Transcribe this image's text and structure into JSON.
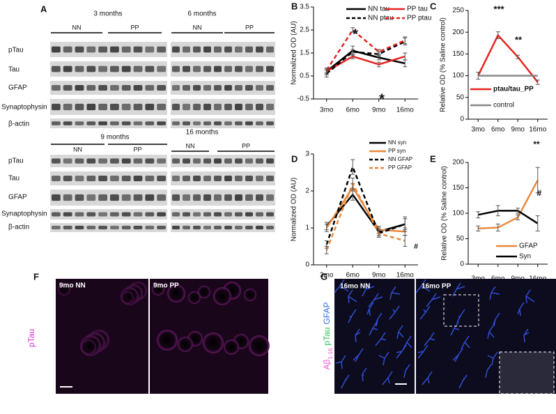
{
  "panels": {
    "A": {
      "letter": "A",
      "groups": [
        {
          "title": "3 months",
          "labels": [
            "NN",
            "PP"
          ]
        },
        {
          "title": "6 months",
          "labels": [
            "NN",
            "PP"
          ]
        },
        {
          "title": "9 months",
          "labels": [
            "NN",
            "PP"
          ]
        },
        {
          "title": "16 months",
          "labels": [
            "NN",
            "PP"
          ]
        }
      ],
      "rows_top": [
        "pTau",
        "Tau",
        "GFAP",
        "Synaptophysin",
        "β-actin"
      ],
      "rows_bottom": [
        "pTau",
        "Tau",
        "GFAP",
        "Synaptophysin",
        "β-actin"
      ]
    },
    "F": {
      "letter": "F",
      "left": "9mo NN",
      "right": "9mo PP",
      "stain": "pTau"
    },
    "G": {
      "letter": "G",
      "left": "16mo NN",
      "right": "16mo PP",
      "stain": [
        "Aβ",
        "1-16",
        "pTau",
        "GFAP"
      ]
    }
  },
  "chart_data": [
    {
      "letter": "B",
      "type": "line",
      "categories": [
        "3mo",
        "6mo",
        "9mo",
        "16mo"
      ],
      "ylabel": "Normalized OD (AU)",
      "ylim": [
        -0.5,
        3.5
      ],
      "yticks": [
        -0.5,
        0.5,
        1.5,
        2.5,
        3.5
      ],
      "series": [
        {
          "name": "NN tau",
          "color": "#000000",
          "dash": false,
          "values": [
            0.7,
            1.6,
            1.3,
            1.05
          ],
          "errors": [
            0.15,
            0.2,
            0.1,
            0.15
          ]
        },
        {
          "name": "PP tau",
          "color": "#e8231f",
          "dash": false,
          "values": [
            0.7,
            1.35,
            1.0,
            1.35
          ],
          "errors": [
            0.1,
            0.1,
            0.1,
            0.15
          ]
        },
        {
          "name": "NN ptau",
          "color": "#000000",
          "dash": true,
          "values": [
            0.6,
            1.55,
            1.45,
            2.0
          ],
          "errors": [
            0.15,
            0.1,
            0.1,
            0.15
          ]
        },
        {
          "name": "PP ptau",
          "color": "#e8231f",
          "dash": true,
          "values": [
            0.75,
            2.5,
            1.55,
            2.05
          ],
          "errors": [
            0.1,
            0.1,
            0.1,
            0.15
          ]
        }
      ],
      "annotations": [
        "*",
        "*"
      ]
    },
    {
      "letter": "C",
      "type": "line",
      "categories": [
        "3mo",
        "6mo",
        "9mo",
        "16mo"
      ],
      "ylabel": "Relative OD (% Saline control)",
      "ylim": [
        0,
        250
      ],
      "yticks": [
        0,
        50,
        100,
        150,
        200,
        250
      ],
      "series": [
        {
          "name": "ptau/tau_PP",
          "color": "#e8231f",
          "dash": false,
          "values": [
            100,
            193,
            143,
            85
          ],
          "errors": [
            8,
            8,
            4,
            5
          ]
        },
        {
          "name": "control",
          "color": "#888888",
          "dash": false,
          "values": [
            100,
            100,
            100,
            100
          ]
        }
      ],
      "annotations": [
        "***",
        "**"
      ]
    },
    {
      "letter": "D",
      "type": "line",
      "categories": [
        "3mo",
        "6mo",
        "9mo",
        "16mo"
      ],
      "ylabel": "Normalized OD (AU)",
      "ylim": [
        0,
        3
      ],
      "yticks": [
        0,
        1,
        2,
        3
      ],
      "series": [
        {
          "name": "NN syn",
          "color": "#000000",
          "dash": false,
          "values": [
            1.05,
            1.9,
            0.9,
            1.1
          ],
          "errors": [
            0.1,
            0.15,
            0.1,
            0.15
          ]
        },
        {
          "name": "PP syn",
          "color": "#e8883a",
          "dash": false,
          "values": [
            1.0,
            2.1,
            0.95,
            0.9
          ],
          "errors": [
            0.1,
            0.1,
            0.1,
            0.1
          ]
        },
        {
          "name": "NN GFAP",
          "color": "#000000",
          "dash": true,
          "values": [
            0.55,
            2.65,
            0.85,
            1.1
          ],
          "errors": [
            0.1,
            0.2,
            0.1,
            0.2
          ]
        },
        {
          "name": "PP GFAP",
          "color": "#e8883a",
          "dash": true,
          "values": [
            0.4,
            2.2,
            0.85,
            0.65
          ],
          "errors": [
            0.1,
            0.15,
            0.1,
            0.15
          ]
        }
      ],
      "annotations": [
        "#"
      ]
    },
    {
      "letter": "E",
      "type": "line",
      "categories": [
        "3mo",
        "6mo",
        "9mo",
        "16mo"
      ],
      "ylabel": "Relative OD (% Saline control)",
      "ylim": [
        0,
        200
      ],
      "yticks": [
        0,
        50,
        100,
        150,
        200
      ],
      "series": [
        {
          "name": "GFAP",
          "color": "#e8883a",
          "dash": false,
          "values": [
            70,
            72,
            92,
            165
          ],
          "errors": [
            5,
            7,
            5,
            25
          ]
        },
        {
          "name": "Syn",
          "color": "#000000",
          "dash": false,
          "values": [
            97,
            105,
            105,
            80
          ],
          "errors": [
            6,
            10,
            5,
            15
          ]
        }
      ],
      "annotations": [
        "**",
        "#"
      ]
    }
  ]
}
